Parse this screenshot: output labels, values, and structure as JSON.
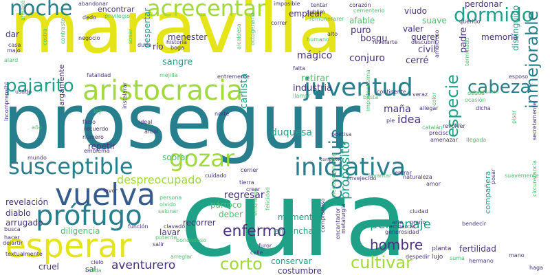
{
  "palette": {
    "yellow": "#e5e419",
    "lime": "#a0da39",
    "green": "#4ac16d",
    "teal": "#1fa187",
    "cyan": "#277f8e",
    "blue": "#365c8d",
    "indigo": "#46327e",
    "purple": "#440154"
  },
  "words": [
    {
      "text": "maravilla",
      "color": "yellow",
      "size": 104
    },
    {
      "text": "proseguir",
      "color": "cyan",
      "size": 110
    },
    {
      "text": "cura",
      "color": "teal",
      "size": 150
    },
    {
      "text": "aristocracia",
      "color": "lime",
      "size": 40
    },
    {
      "text": "susceptible",
      "color": "cyan",
      "size": 32
    },
    {
      "text": "esperar",
      "color": "yellow",
      "size": 48
    },
    {
      "text": "prófugo",
      "color": "cyan",
      "size": 40
    },
    {
      "text": "vuelva",
      "color": "blue",
      "size": 44
    },
    {
      "text": "iniciativa",
      "color": "cyan",
      "size": 36
    },
    {
      "text": "juventud",
      "color": "cyan",
      "size": 36
    },
    {
      "text": "gozar",
      "color": "lime",
      "size": 34
    },
    {
      "text": "acrecentar",
      "color": "lime",
      "size": 32
    },
    {
      "text": "noche",
      "color": "cyan",
      "size": 30
    },
    {
      "text": "dormido",
      "color": "teal",
      "size": 28
    },
    {
      "text": "cabeza",
      "color": "cyan",
      "size": 26
    },
    {
      "text": "pajarito",
      "color": "teal",
      "size": 26
    },
    {
      "text": "inmejorable",
      "color": "cyan",
      "size": 24
    },
    {
      "text": "especie",
      "color": "teal",
      "size": 24
    },
    {
      "text": "conduje",
      "color": "cyan",
      "size": 26
    },
    {
      "text": "corto",
      "color": "lime",
      "size": 24
    },
    {
      "text": "cultivar",
      "color": "lime",
      "size": 24
    },
    {
      "text": "hombre",
      "color": "indigo",
      "size": 20
    },
    {
      "text": "enfermo",
      "color": "indigo",
      "size": 22
    },
    {
      "text": "personaje",
      "color": "teal",
      "size": 18
    },
    {
      "text": "propósito",
      "color": "teal",
      "size": 18
    },
    {
      "text": "aventurero",
      "color": "indigo",
      "size": 17
    },
    {
      "text": "despreocupado",
      "color": "lime",
      "size": 16
    },
    {
      "text": "regresar",
      "color": "indigo",
      "size": 14
    },
    {
      "text": "duquesa",
      "color": "teal",
      "size": 14
    },
    {
      "text": "carlista",
      "color": "teal",
      "size": 14
    },
    {
      "text": "idea",
      "color": "indigo",
      "size": 16
    },
    {
      "text": "maña",
      "color": "indigo",
      "size": 14
    },
    {
      "text": "industria",
      "color": "indigo",
      "size": 13
    },
    {
      "text": "retirar",
      "color": "green",
      "size": 13
    },
    {
      "text": "sangre",
      "color": "teal",
      "size": 13
    },
    {
      "text": "mágico",
      "color": "indigo",
      "size": 14
    },
    {
      "text": "conjuro",
      "color": "indigo",
      "size": 14
    },
    {
      "text": "bosqu",
      "color": "indigo",
      "size": 13
    },
    {
      "text": "civil",
      "color": "indigo",
      "size": 13
    },
    {
      "text": "cerré",
      "color": "indigo",
      "size": 13
    },
    {
      "text": "padre",
      "color": "indigo",
      "size": 13
    },
    {
      "text": "valer",
      "color": "indigo",
      "size": 12
    },
    {
      "text": "querer",
      "color": "indigo",
      "size": 12
    },
    {
      "text": "puro",
      "color": "indigo",
      "size": 13
    },
    {
      "text": "afable",
      "color": "green",
      "size": 12
    },
    {
      "text": "suave",
      "color": "green",
      "size": 12
    },
    {
      "text": "viudo",
      "color": "indigo",
      "size": 12
    },
    {
      "text": "memoria",
      "color": "indigo",
      "size": 12
    },
    {
      "text": "perdonar",
      "color": "indigo",
      "size": 12
    },
    {
      "text": "distinguido",
      "color": "teal",
      "size": 12
    },
    {
      "text": "menester",
      "color": "indigo",
      "size": 12
    },
    {
      "text": "despertar",
      "color": "teal",
      "size": 12
    },
    {
      "text": "río",
      "color": "indigo",
      "size": 12
    },
    {
      "text": "dar",
      "color": "indigo",
      "size": 12
    },
    {
      "text": "repetir",
      "color": "indigo",
      "size": 12
    },
    {
      "text": "revelación",
      "color": "indigo",
      "size": 12
    },
    {
      "text": "diablo",
      "color": "indigo",
      "size": 12
    },
    {
      "text": "arrugado",
      "color": "indigo",
      "size": 12
    },
    {
      "text": "diligencia",
      "color": "green",
      "size": 12
    },
    {
      "text": "lavar",
      "color": "indigo",
      "size": 12
    },
    {
      "text": "recorrer",
      "color": "indigo",
      "size": 12
    },
    {
      "text": "deber",
      "color": "green",
      "size": 12
    },
    {
      "text": "párroco",
      "color": "green",
      "size": 12
    },
    {
      "text": "momento",
      "color": "teal",
      "size": 12
    },
    {
      "text": "ensanchar",
      "color": "teal",
      "size": 12
    },
    {
      "text": "compañera",
      "color": "teal",
      "size": 11
    },
    {
      "text": "fertilidad",
      "color": "indigo",
      "size": 12
    },
    {
      "text": "conservar",
      "color": "teal",
      "size": 12
    },
    {
      "text": "costumbre",
      "color": "indigo",
      "size": 12
    },
    {
      "text": "cruel",
      "color": "indigo",
      "size": 12
    },
    {
      "text": "sal",
      "color": "indigo",
      "size": 11
    },
    {
      "text": "sobrar",
      "color": "green",
      "size": 12
    },
    {
      "text": "largamente",
      "color": "indigo",
      "size": 11
    },
    {
      "text": "emplear",
      "color": "indigo",
      "size": 12
    },
    {
      "text": "encontrar",
      "color": "indigo",
      "size": 11
    },
    {
      "text": "lujo",
      "color": "indigo",
      "size": 9
    },
    {
      "text": "planta",
      "color": "indigo",
      "size": 9
    },
    {
      "text": "ciudad",
      "color": "indigo",
      "size": 8
    },
    {
      "text": "bendecir",
      "color": "indigo",
      "size": 8
    },
    {
      "text": "embarcar",
      "color": "indigo",
      "size": 8
    },
    {
      "text": "arte",
      "color": "indigo",
      "size": 8
    },
    {
      "text": "grano",
      "color": "indigo",
      "size": 8
    },
    {
      "text": "hermano",
      "color": "indigo",
      "size": 8
    },
    {
      "text": "mano",
      "color": "indigo",
      "size": 8
    },
    {
      "text": "haga",
      "color": "indigo",
      "size": 8
    },
    {
      "text": "despedir",
      "color": "indigo",
      "size": 8
    },
    {
      "text": "suma",
      "color": "green",
      "size": 8
    },
    {
      "text": "circunstancia",
      "color": "green",
      "size": 8
    },
    {
      "text": "posar",
      "color": "indigo",
      "size": 8
    },
    {
      "text": "amor",
      "color": "indigo",
      "size": 8
    },
    {
      "text": "suavemente",
      "color": "green",
      "size": 8
    },
    {
      "text": "secretamente",
      "color": "indigo",
      "size": 8
    },
    {
      "text": "cuidado",
      "color": "indigo",
      "size": 8
    },
    {
      "text": "tierra",
      "color": "indigo",
      "size": 8
    },
    {
      "text": "crear",
      "color": "indigo",
      "size": 8
    },
    {
      "text": "cerner",
      "color": "indigo",
      "size": 8
    },
    {
      "text": "naturaleza",
      "color": "indigo",
      "size": 8
    },
    {
      "text": "levantar",
      "color": "green",
      "size": 8
    },
    {
      "text": "envejecido",
      "color": "indigo",
      "size": 8
    },
    {
      "text": "complete",
      "color": "indigo",
      "size": 6
    },
    {
      "text": "amenazar",
      "color": "indigo",
      "size": 8
    },
    {
      "text": "precisc",
      "color": "indigo",
      "size": 8
    },
    {
      "text": "poetisa",
      "color": "indigo",
      "size": 8
    },
    {
      "text": "ver",
      "color": "green",
      "size": 10
    },
    {
      "text": "revólver",
      "color": "indigo",
      "size": 8
    },
    {
      "text": "catalán",
      "color": "green",
      "size": 8
    },
    {
      "text": "llegada",
      "color": "green",
      "size": 8
    },
    {
      "text": "pisar",
      "color": "green",
      "size": 8
    },
    {
      "text": "dicha",
      "color": "indigo",
      "size": 8
    },
    {
      "text": "color",
      "color": "green",
      "size": 8
    },
    {
      "text": "ocasión",
      "color": "green",
      "size": 8
    },
    {
      "text": "deuda",
      "color": "green",
      "size": 8
    },
    {
      "text": "esposo",
      "color": "indigo",
      "size": 8
    },
    {
      "text": "rehabilitación",
      "color": "green",
      "size": 6
    },
    {
      "text": "ambicioso",
      "color": "indigo",
      "size": 8
    },
    {
      "text": "terminado",
      "color": "green",
      "size": 8
    },
    {
      "text": "querido",
      "color": "indigo",
      "size": 8
    },
    {
      "text": "descubrir",
      "color": "indigo",
      "size": 8
    },
    {
      "text": "revelarte",
      "color": "indigo",
      "size": 8
    },
    {
      "text": "humano",
      "color": "green",
      "size": 8
    },
    {
      "text": "alto",
      "color": "indigo",
      "size": 8
    },
    {
      "text": "correr",
      "color": "indigo",
      "size": 8
    },
    {
      "text": "imposible",
      "color": "indigo",
      "size": 8
    },
    {
      "text": "sublim",
      "color": "indigo",
      "size": 8
    },
    {
      "text": "tentar",
      "color": "indigo",
      "size": 8
    },
    {
      "text": "corazón",
      "color": "indigo",
      "size": 8
    },
    {
      "text": "cementerio",
      "color": "green",
      "size": 8
    },
    {
      "text": "remunerarer",
      "color": "green",
      "size": 8
    },
    {
      "text": "privilegio",
      "color": "green",
      "size": 8
    },
    {
      "text": "abandonar",
      "color": "indigo",
      "size": 8
    },
    {
      "text": "dedo",
      "color": "indigo",
      "size": 8
    },
    {
      "text": "almacén",
      "color": "green",
      "size": 8
    },
    {
      "text": "negocio",
      "color": "indigo",
      "size": 8
    },
    {
      "text": "costra",
      "color": "green",
      "size": 8
    },
    {
      "text": "contraste",
      "color": "green",
      "size": 8
    },
    {
      "text": "sonar",
      "color": "green",
      "size": 8
    },
    {
      "text": "duda",
      "color": "indigo",
      "size": 8
    },
    {
      "text": "boga",
      "color": "indigo",
      "size": 8
    },
    {
      "text": "historia",
      "color": "indigo",
      "size": 8
    },
    {
      "text": "alcaldesa",
      "color": "green",
      "size": 8
    },
    {
      "text": "octogenario",
      "color": "green",
      "size": 8
    },
    {
      "text": "casa",
      "color": "indigo",
      "size": 8
    },
    {
      "text": "majo",
      "color": "indigo",
      "size": 8
    },
    {
      "text": "alard",
      "color": "green",
      "size": 8
    },
    {
      "text": "fatalidad",
      "color": "indigo",
      "size": 8
    },
    {
      "text": "mejilla",
      "color": "green",
      "size": 8
    },
    {
      "text": "entremente",
      "color": "indigo",
      "size": 8
    },
    {
      "text": "usado",
      "color": "indigo",
      "size": 8
    },
    {
      "text": "falta",
      "color": "indigo",
      "size": 8
    },
    {
      "text": "llamar",
      "color": "green",
      "size": 8
    },
    {
      "text": "basta",
      "color": "green",
      "size": 8
    },
    {
      "text": "continente",
      "color": "indigo",
      "size": 8
    },
    {
      "text": "veraz",
      "color": "indigo",
      "size": 8
    },
    {
      "text": "allegar",
      "color": "indigo",
      "size": 8
    },
    {
      "text": "pie",
      "color": "indigo",
      "size": 8
    },
    {
      "text": "importantísima",
      "color": "green",
      "size": 8
    },
    {
      "text": "entrar",
      "color": "indigo",
      "size": 8
    },
    {
      "text": "norte",
      "color": "indigo",
      "size": 8
    },
    {
      "text": "ley",
      "color": "green",
      "size": 8
    },
    {
      "text": "instalarar",
      "color": "indigo",
      "size": 8
    },
    {
      "text": "ideal",
      "color": "indigo",
      "size": 8
    },
    {
      "text": "árbol",
      "color": "indigo",
      "size": 8
    },
    {
      "text": "número",
      "color": "indigo",
      "size": 8
    },
    {
      "text": "emblema",
      "color": "indigo",
      "size": 8
    },
    {
      "text": "falso",
      "color": "indigo",
      "size": 8
    },
    {
      "text": "recuerdo",
      "color": "indigo",
      "size": 8
    },
    {
      "text": "año",
      "color": "green",
      "size": 8
    },
    {
      "text": "incomprensibl",
      "color": "indigo",
      "size": 8
    },
    {
      "text": "mundo",
      "color": "indigo",
      "size": 8
    },
    {
      "text": "favor",
      "color": "indigo",
      "size": 8
    },
    {
      "text": "persona",
      "color": "green",
      "size": 8
    },
    {
      "text": "olvido",
      "color": "green",
      "size": 8
    },
    {
      "text": "salonar",
      "color": "green",
      "size": 8
    },
    {
      "text": "función",
      "color": "indigo",
      "size": 8
    },
    {
      "text": "clavado",
      "color": "indigo",
      "size": 8
    },
    {
      "text": "potente",
      "color": "green",
      "size": 8
    },
    {
      "text": "salir",
      "color": "indigo",
      "size": 8
    },
    {
      "text": "busca",
      "color": "indigo",
      "size": 8
    },
    {
      "text": "hacer",
      "color": "indigo",
      "size": 8
    },
    {
      "text": "dejartir",
      "color": "indigo",
      "size": 8
    },
    {
      "text": "textualmente",
      "color": "indigo",
      "size": 8
    },
    {
      "text": "bondadoso",
      "color": "green",
      "size": 8
    },
    {
      "text": "emoliente",
      "color": "green",
      "size": 8
    },
    {
      "text": "felicidad",
      "color": "green",
      "size": 8
    },
    {
      "text": "afectuosamente",
      "color": "green",
      "size": 8
    },
    {
      "text": "metalurgia",
      "color": "indigo",
      "size": 8
    },
    {
      "text": "compromiso",
      "color": "indigo",
      "size": 8
    },
    {
      "text": "encantador",
      "color": "indigo",
      "size": 8
    },
    {
      "text": "generosidad",
      "color": "indigo",
      "size": 8
    },
    {
      "text": "furor",
      "color": "indigo",
      "size": 8
    },
    {
      "text": "calle",
      "color": "indigo",
      "size": 8
    },
    {
      "text": "arreglar",
      "color": "green",
      "size": 8
    },
    {
      "text": "cielo",
      "color": "indigo",
      "size": 8
    },
    {
      "text": "salida",
      "color": "green",
      "size": 8
    }
  ]
}
